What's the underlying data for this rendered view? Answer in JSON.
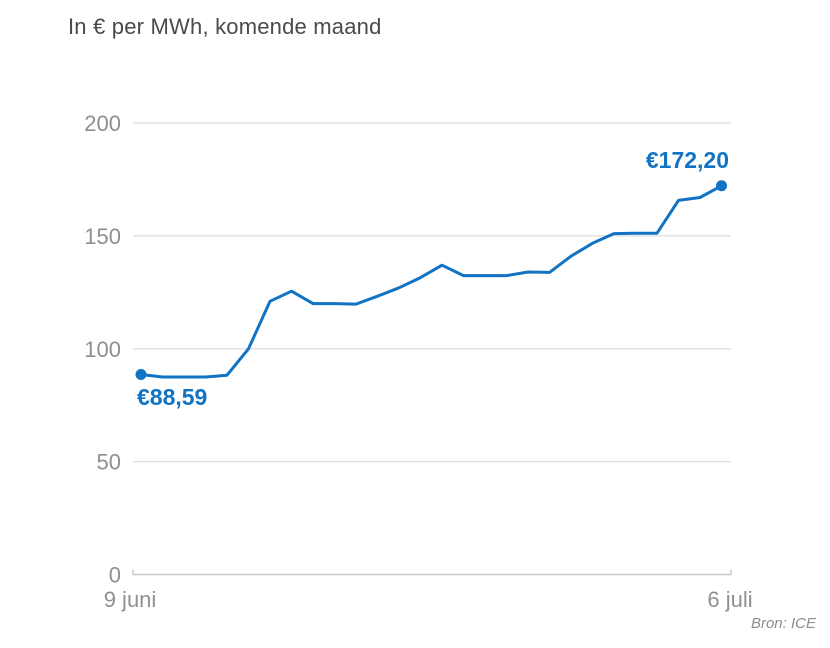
{
  "header": {
    "title": "In € per MWh, komende maand"
  },
  "footer": {
    "source": "Bron: ICE"
  },
  "chart_data": {
    "type": "line",
    "title": "In € per MWh, komende maand",
    "x": [
      "9 juni",
      "10 juni",
      "11 juni",
      "12 juni",
      "13 juni",
      "14 juni",
      "15 juni",
      "16 juni",
      "17 juni",
      "18 juni",
      "19 juni",
      "20 juni",
      "21 juni",
      "22 juni",
      "23 juni",
      "24 juni",
      "25 juni",
      "26 juni",
      "27 juni",
      "28 juni",
      "29 juni",
      "30 juni",
      "1 juli",
      "2 juli",
      "3 juli",
      "4 juli",
      "5 juli",
      "6 juli"
    ],
    "values": [
      88.59,
      87.5,
      87.5,
      87.5,
      88.3,
      100,
      121,
      125.5,
      120,
      120,
      119.8,
      123.3,
      127,
      131.5,
      137,
      132.4,
      132.4,
      132.4,
      134,
      133.8,
      141,
      146.7,
      151,
      151.2,
      151.2,
      165.7,
      167,
      172.2
    ],
    "first_value": 88.59,
    "last_value": 172.2,
    "xlabel": "",
    "ylabel": "",
    "ylim": [
      0,
      200
    ],
    "y_ticks": [
      0,
      50,
      100,
      150,
      200
    ],
    "x_axis_labels": [
      "9 juni",
      "6 juli"
    ],
    "grid": "horizontal",
    "legend": "none",
    "annotations": [
      {
        "text": "€88,59",
        "point": "first"
      },
      {
        "text": "€172,20",
        "point": "last"
      }
    ],
    "source": "Bron: ICE",
    "colors": {
      "line": "#1173c4",
      "value_label": "#1173c4",
      "gridline": "#dcdcdc",
      "axis": "#c9c9c9",
      "tick_text": "#8f8f8f",
      "title_text": "#4a4a4a",
      "source_text": "#8d8d8d"
    }
  }
}
